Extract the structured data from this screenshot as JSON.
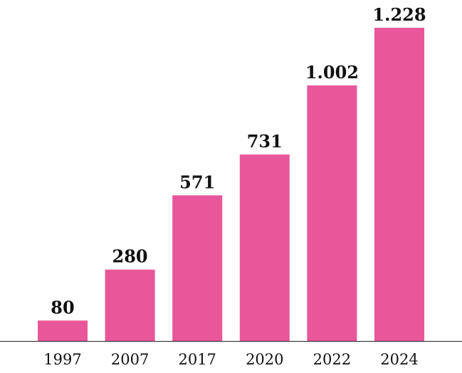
{
  "chart_data": {
    "type": "bar",
    "title": "",
    "xlabel": "",
    "ylabel": "",
    "categories": [
      "1997",
      "2007",
      "2017",
      "2020",
      "2022",
      "2024"
    ],
    "values": [
      80,
      280,
      571,
      731,
      1002,
      1228
    ],
    "value_labels": [
      "80",
      "280",
      "571",
      "731",
      "1.002",
      "1.228"
    ],
    "ylim": [
      0,
      1228
    ],
    "grid": false,
    "legend": "none",
    "bar_color": "#E8579A"
  }
}
